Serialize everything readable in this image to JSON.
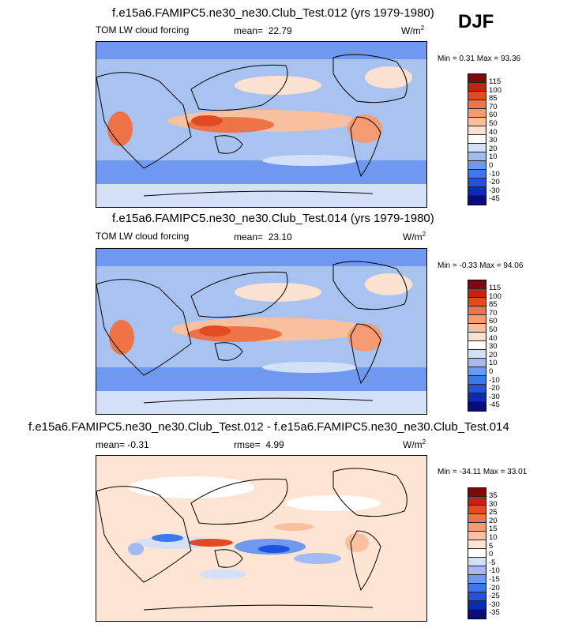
{
  "season": "DJF",
  "colors": {
    "absolute": [
      "#0b0b7a",
      "#0b2bb0",
      "#1f52de",
      "#3d77ee",
      "#6f98f1",
      "#a2bbf4",
      "#d3e0f8",
      "#ffffff",
      "#fbe1cf",
      "#f8c09f",
      "#f49b72",
      "#ee7448",
      "#e24a22",
      "#c1250f",
      "#7c0a08"
    ],
    "difference": [
      "#0b0b7a",
      "#0b2bb0",
      "#1f52de",
      "#3d77ee",
      "#6f98f1",
      "#a2bbf4",
      "#d3e0f8",
      "#ffffff",
      "#fde4d3",
      "#f9c3a3",
      "#f49b72",
      "#ee7448",
      "#e24a22",
      "#c1250f",
      "#7c0a08"
    ]
  },
  "panels": [
    {
      "title": "f.e15a6.FAMIPC5.ne30_ne30.Club_Test.012 (yrs 1979-1980)",
      "left_label": "TOM LW cloud forcing",
      "stat_label": "mean=",
      "stat_value": "22.79",
      "units": "W/m",
      "units_exp": "2",
      "minmax": "Min =  0.31 Max =  93.36",
      "levels": [
        "115",
        "100",
        "85",
        "70",
        "60",
        "50",
        "40",
        "30",
        "20",
        "10",
        "0",
        "-10",
        "-20",
        "-30",
        "-45"
      ]
    },
    {
      "title": "f.e15a6.FAMIPC5.ne30_ne30.Club_Test.014 (yrs 1979-1980)",
      "left_label": "TOM LW cloud forcing",
      "stat_label": "mean=",
      "stat_value": "23.10",
      "units": "W/m",
      "units_exp": "2",
      "minmax": "Min = -0.33 Max =  94.06",
      "levels": [
        "115",
        "100",
        "85",
        "70",
        "60",
        "50",
        "40",
        "30",
        "20",
        "10",
        "0",
        "-10",
        "-20",
        "-30",
        "-45"
      ]
    },
    {
      "title": "f.e15a6.FAMIPC5.ne30_ne30.Club_Test.012 - f.e15a6.FAMIPC5.ne30_ne30.Club_Test.014",
      "left_label": "mean=  -0.31",
      "stat_label": "rmse=",
      "stat_value": "4.99",
      "units": "W/m",
      "units_exp": "2",
      "minmax": "Min = -34.11 Max =  33.01",
      "levels": [
        "35",
        "30",
        "25",
        "20",
        "15",
        "10",
        "5",
        "0",
        "-5",
        "-10",
        "-15",
        "-20",
        "-25",
        "-30",
        "-35"
      ]
    }
  ],
  "chart_data": [
    {
      "type": "heatmap",
      "title": "f.e15a6.FAMIPC5.ne30_ne30.Club_Test.012 (yrs 1979-1980)",
      "variable": "TOM LW cloud forcing",
      "units": "W/m2",
      "mean": 22.79,
      "min": 0.31,
      "max": 93.36,
      "colorbar_levels": [
        -45,
        -30,
        -20,
        -10,
        0,
        10,
        20,
        30,
        40,
        50,
        60,
        70,
        85,
        100,
        115
      ]
    },
    {
      "type": "heatmap",
      "title": "f.e15a6.FAMIPC5.ne30_ne30.Club_Test.014 (yrs 1979-1980)",
      "variable": "TOM LW cloud forcing",
      "units": "W/m2",
      "mean": 23.1,
      "min": -0.33,
      "max": 94.06,
      "colorbar_levels": [
        -45,
        -30,
        -20,
        -10,
        0,
        10,
        20,
        30,
        40,
        50,
        60,
        70,
        85,
        100,
        115
      ]
    },
    {
      "type": "heatmap",
      "title": "f.e15a6.FAMIPC5.ne30_ne30.Club_Test.012 - f.e15a6.FAMIPC5.ne30_ne30.Club_Test.014",
      "units": "W/m2",
      "mean": -0.31,
      "rmse": 4.99,
      "min": -34.11,
      "max": 33.01,
      "colorbar_levels": [
        -35,
        -30,
        -25,
        -20,
        -15,
        -10,
        -5,
        0,
        5,
        10,
        15,
        20,
        25,
        30,
        35
      ]
    }
  ]
}
